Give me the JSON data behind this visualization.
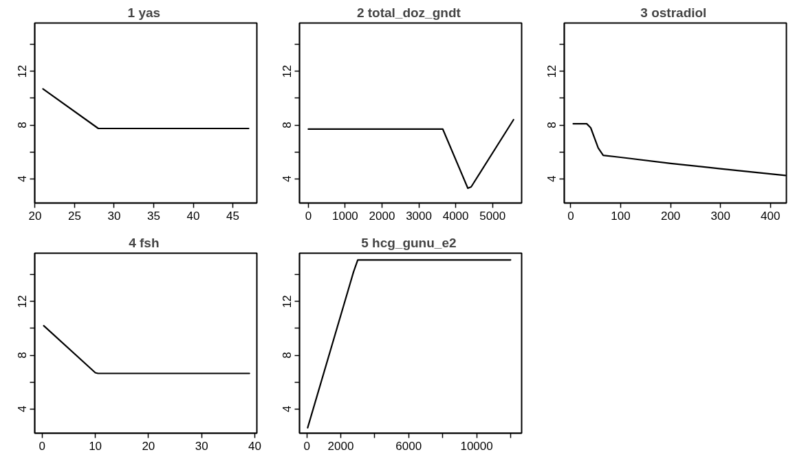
{
  "chart_data": [
    {
      "type": "line",
      "title": "1  yas",
      "x": [
        21,
        28,
        47
      ],
      "series": [
        {
          "color": "#000000",
          "values": [
            10.7,
            7.75,
            7.75
          ]
        }
      ],
      "xlim": [
        19.96,
        48.04
      ],
      "xticks": [
        20,
        25,
        30,
        35,
        40,
        45
      ],
      "ylim": [
        2.2,
        15.6
      ],
      "yticks": [
        {
          "value": 4,
          "label": "4"
        },
        {
          "value": 6,
          "label": null
        },
        {
          "value": 8,
          "label": "8"
        },
        {
          "value": 10,
          "label": null
        },
        {
          "value": 12,
          "label": "12"
        },
        {
          "value": 14,
          "label": null
        }
      ]
    },
    {
      "type": "line",
      "title": "2  total_doz_gndt",
      "x": [
        0,
        3650,
        4330,
        4420,
        5570
      ],
      "series": [
        {
          "color": "#000000",
          "values": [
            7.7,
            7.7,
            3.3,
            3.4,
            8.4
          ]
        }
      ],
      "xlim": [
        -240,
        5790
      ],
      "xticks": [
        0,
        1000,
        2000,
        3000,
        4000,
        5000
      ],
      "ylim": [
        2.2,
        15.6
      ],
      "yticks": [
        {
          "value": 4,
          "label": "4"
        },
        {
          "value": 6,
          "label": null
        },
        {
          "value": 8,
          "label": "8"
        },
        {
          "value": 10,
          "label": null
        },
        {
          "value": 12,
          "label": "12"
        },
        {
          "value": 14,
          "label": null
        }
      ]
    },
    {
      "type": "line",
      "title": "3  ostradiol",
      "x": [
        5,
        32,
        40,
        55,
        65,
        100,
        200,
        300,
        430
      ],
      "series": [
        {
          "color": "#000000",
          "values": [
            8.1,
            8.1,
            7.8,
            6.3,
            5.75,
            5.6,
            5.15,
            4.75,
            4.25
          ]
        }
      ],
      "xlim": [
        -13,
        432
      ],
      "xticks": [
        0,
        100,
        200,
        300,
        400
      ],
      "ylim": [
        2.2,
        15.6
      ],
      "yticks": [
        {
          "value": 4,
          "label": "4"
        },
        {
          "value": 6,
          "label": null
        },
        {
          "value": 8,
          "label": "8"
        },
        {
          "value": 10,
          "label": null
        },
        {
          "value": 12,
          "label": "12"
        },
        {
          "value": 14,
          "label": null
        }
      ]
    },
    {
      "type": "line",
      "title": "4  fsh",
      "x": [
        0.3,
        10,
        10.5,
        39
      ],
      "series": [
        {
          "color": "#000000",
          "values": [
            10.2,
            6.7,
            6.65,
            6.65
          ]
        }
      ],
      "xlim": [
        -1.4,
        40.4
      ],
      "xticks": [
        0,
        10,
        20,
        30,
        40
      ],
      "ylim": [
        2.2,
        15.6
      ],
      "yticks": [
        {
          "value": 4,
          "label": "4"
        },
        {
          "value": 6,
          "label": null
        },
        {
          "value": 8,
          "label": "8"
        },
        {
          "value": 10,
          "label": null
        },
        {
          "value": 12,
          "label": "12"
        },
        {
          "value": 14,
          "label": null
        }
      ]
    },
    {
      "type": "line",
      "title": "5  hcg_gunu_e2",
      "x": [
        50,
        2750,
        3000,
        12000
      ],
      "series": [
        {
          "color": "#000000",
          "values": [
            2.6,
            14.2,
            15.1,
            15.1
          ]
        }
      ],
      "xlim": [
        -430,
        12650
      ],
      "xticks": [
        0,
        2000,
        {
          "value": 4000,
          "label": null
        },
        6000,
        {
          "value": 8000,
          "label": null
        },
        10000,
        {
          "value": 12000,
          "label": null
        }
      ],
      "ylim": [
        2.2,
        15.6
      ],
      "yticks": [
        {
          "value": 4,
          "label": "4"
        },
        {
          "value": 6,
          "label": null
        },
        {
          "value": 8,
          "label": "8"
        },
        {
          "value": 10,
          "label": null
        },
        {
          "value": 12,
          "label": "12"
        },
        {
          "value": 14,
          "label": null
        }
      ]
    }
  ]
}
